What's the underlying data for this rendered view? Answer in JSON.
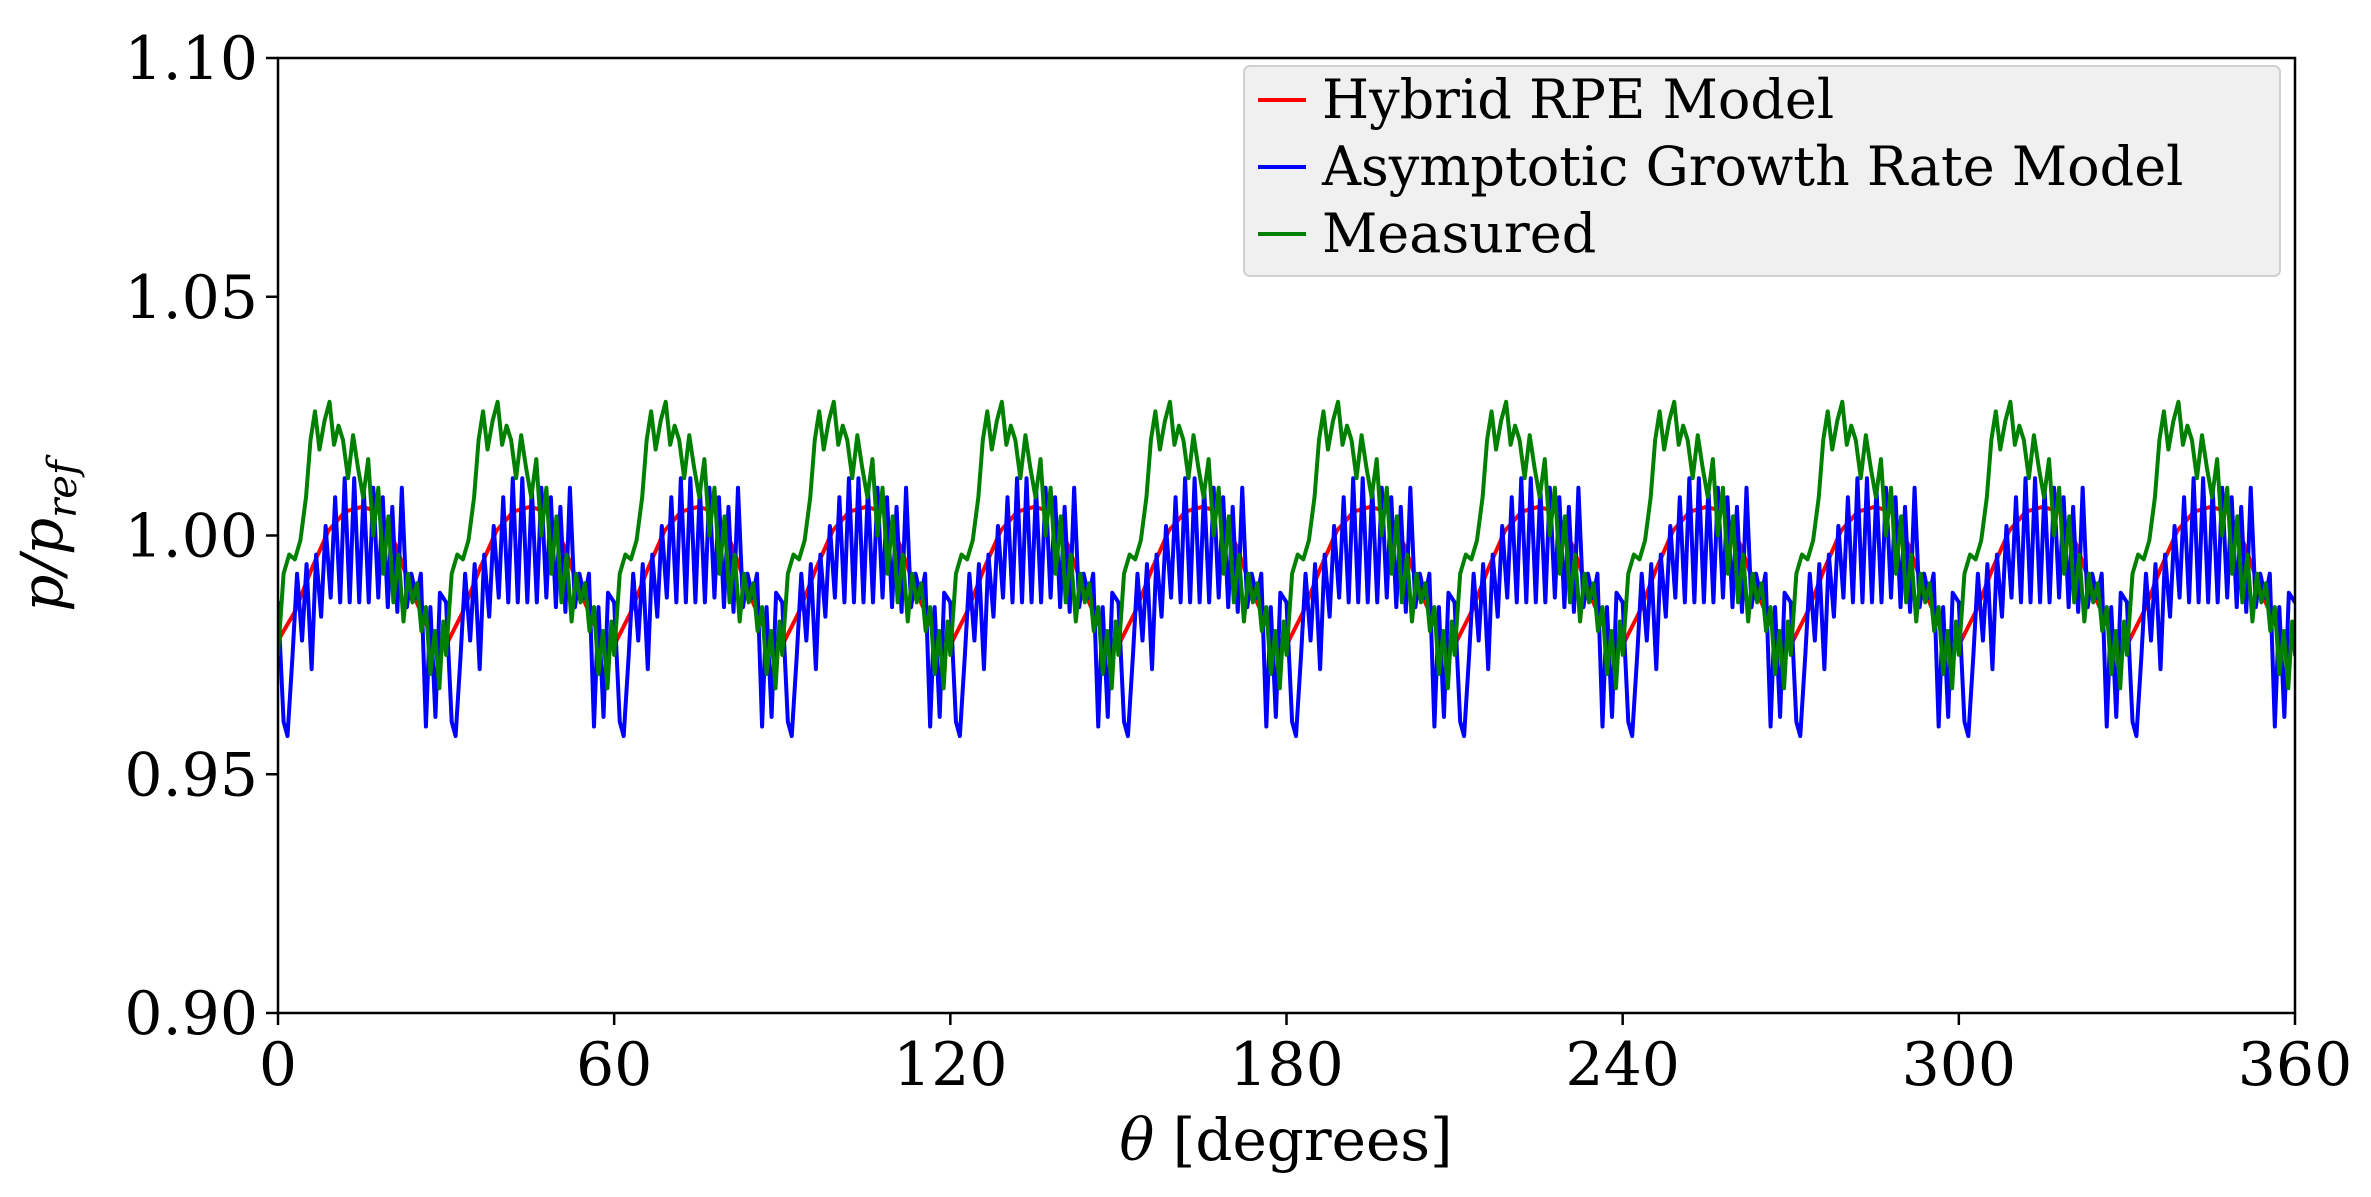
{
  "chart_data": {
    "type": "line",
    "title": "",
    "xlabel": {
      "symbol": "θ",
      "text": " [degrees]"
    },
    "ylabel": {
      "base": "p/p",
      "subscript": "ref"
    },
    "xlim": [
      0,
      360
    ],
    "ylim": [
      0.9,
      1.1
    ],
    "xticks": [
      {
        "value": 0,
        "label": "0"
      },
      {
        "value": 60,
        "label": "60"
      },
      {
        "value": 120,
        "label": "120"
      },
      {
        "value": 180,
        "label": "180"
      },
      {
        "value": 240,
        "label": "240"
      },
      {
        "value": 300,
        "label": "300"
      },
      {
        "value": 360,
        "label": "360"
      }
    ],
    "yticks": [
      {
        "value": 0.9,
        "label": "0.90"
      },
      {
        "value": 0.95,
        "label": "0.95"
      },
      {
        "value": 1.0,
        "label": "1.00"
      },
      {
        "value": 1.05,
        "label": "1.05"
      },
      {
        "value": 1.1,
        "label": "1.10"
      }
    ],
    "grid": false,
    "legend_position": "top-right",
    "period_degrees": 30,
    "series": [
      {
        "name": "Hybrid RPE Model",
        "color": "#ff0000",
        "cycle_profile": {
          "theta": [
            0,
            3,
            6,
            9,
            12,
            15,
            18,
            21,
            24,
            27,
            30
          ],
          "value": [
            0.978,
            0.984,
            0.993,
            1.001,
            1.005,
            1.006,
            1.005,
            0.998,
            0.988,
            0.98,
            0.977
          ]
        }
      },
      {
        "name": "Asymptotic Growth Rate Model",
        "color": "#0000ff",
        "cycle_profile": {
          "theta": [
            0,
            1.0,
            1.7,
            2.6,
            3.4,
            4.3,
            5.1,
            6.0,
            6.8,
            7.7,
            8.5,
            9.4,
            10.2,
            11.1,
            11.9,
            12.8,
            13.6,
            14.5,
            15.3,
            16.2,
            17.0,
            17.9,
            18.7,
            19.6,
            20.4,
            21.3,
            22.1,
            23.0,
            23.8,
            24.7,
            25.5,
            26.4,
            27.2,
            28.1,
            28.9,
            30
          ],
          "value": [
            0.986,
            0.961,
            0.958,
            0.975,
            0.992,
            0.978,
            0.994,
            0.972,
            0.996,
            0.983,
            1.002,
            0.987,
            1.008,
            0.986,
            1.012,
            0.986,
            1.012,
            0.986,
            1.01,
            0.986,
            1.01,
            0.987,
            1.008,
            0.985,
            1.006,
            0.984,
            1.01,
            0.985,
            0.992,
            0.987,
            0.992,
            0.96,
            0.985,
            0.962,
            0.988,
            0.986
          ]
        }
      },
      {
        "name": "Measured",
        "color": "#008000",
        "cycle_profile": {
          "theta": [
            0,
            1.0,
            2.0,
            3.0,
            4.0,
            5.0,
            5.8,
            6.6,
            7.4,
            8.3,
            9.2,
            10.0,
            10.8,
            11.6,
            12.5,
            13.4,
            14.3,
            15.2,
            16.1,
            17.0,
            17.9,
            18.8,
            19.7,
            20.6,
            21.5,
            22.4,
            23.2,
            24.0,
            24.8,
            25.6,
            26.4,
            27.2,
            28.0,
            28.8,
            29.5,
            30
          ],
          "value": [
            0.975,
            0.992,
            0.996,
            0.995,
            0.999,
            1.008,
            1.02,
            1.026,
            1.018,
            1.024,
            1.028,
            1.019,
            1.023,
            1.02,
            1.012,
            1.021,
            1.014,
            1.008,
            1.016,
            1.0,
            1.01,
            0.992,
            1.004,
            0.986,
            0.996,
            0.982,
            0.992,
            0.986,
            0.99,
            0.98,
            0.985,
            0.971,
            0.98,
            0.968,
            0.982,
            0.975
          ]
        }
      }
    ]
  }
}
